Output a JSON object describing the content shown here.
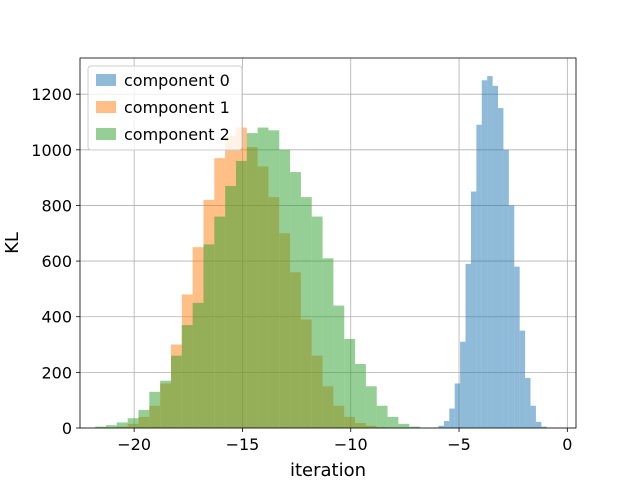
{
  "chart_data": {
    "type": "histogram",
    "title": "",
    "xlabel": "iteration",
    "ylabel": "KL",
    "xlim": [
      -22.5,
      0.4
    ],
    "ylim": [
      0,
      1330
    ],
    "xticks": [
      -20,
      -15,
      -10,
      -5,
      0
    ],
    "xtick_labels": [
      "−20",
      "−15",
      "−10",
      "−5",
      "0"
    ],
    "yticks": [
      0,
      200,
      400,
      600,
      800,
      1000,
      1200
    ],
    "grid": true,
    "legend_position": "top-left",
    "series": [
      {
        "name": "component 0",
        "color": "#1f77b4",
        "alpha": 0.5,
        "bin_start": -6.2,
        "bin_width": 0.25,
        "counts": [
          2,
          8,
          25,
          70,
          160,
          310,
          590,
          850,
          1090,
          1250,
          1265,
          1230,
          1150,
          1000,
          800,
          580,
          350,
          180,
          80,
          22,
          5
        ]
      },
      {
        "name": "component 1",
        "color": "#ff7f0e",
        "alpha": 0.5,
        "bin_start": -20.8,
        "bin_width": 0.5,
        "counts": [
          5,
          15,
          40,
          80,
          160,
          300,
          480,
          650,
          820,
          970,
          1050,
          1080,
          1010,
          940,
          830,
          700,
          560,
          390,
          260,
          150,
          80,
          40,
          18,
          8,
          3
        ]
      },
      {
        "name": "component 2",
        "color": "#2ca02c",
        "alpha": 0.5,
        "bin_start": -21.8,
        "bin_width": 0.5,
        "counts": [
          5,
          10,
          20,
          35,
          65,
          130,
          170,
          260,
          370,
          450,
          660,
          760,
          870,
          960,
          1060,
          1080,
          1070,
          1000,
          920,
          830,
          760,
          610,
          440,
          320,
          230,
          150,
          80,
          40,
          15,
          5
        ]
      }
    ]
  }
}
